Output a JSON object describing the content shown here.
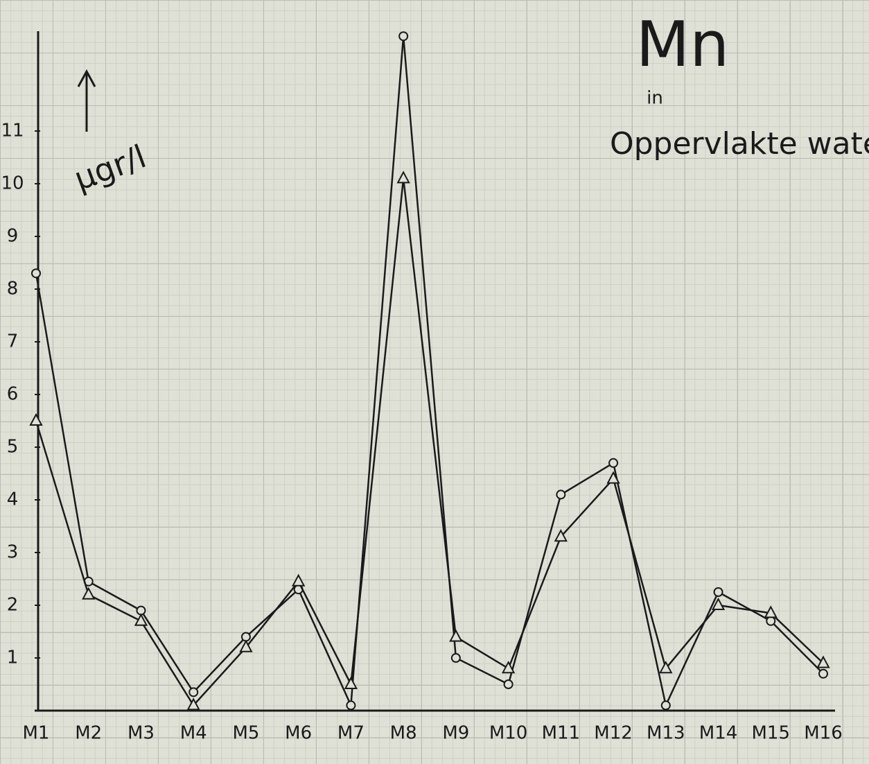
{
  "chart_data": {
    "type": "line",
    "title": "Mn",
    "annotations": [
      "in",
      "Oppervlakte water"
    ],
    "ylabel": "µgr/l",
    "categories": [
      "M1",
      "M2",
      "M3",
      "M4",
      "M5",
      "M6",
      "M7",
      "M8",
      "M9",
      "M10",
      "M11",
      "M12",
      "M13",
      "M14",
      "M15",
      "M16"
    ],
    "series": [
      {
        "color": "#1a1a1a",
        "marker": "circle",
        "values": [
          8.3,
          2.45,
          1.9,
          0.35,
          1.4,
          2.3,
          0.1,
          12.8,
          1.0,
          0.5,
          4.1,
          4.7,
          0.1,
          2.25,
          1.7,
          0.7
        ]
      },
      {
        "color": "#1a1a1a",
        "marker": "triangle",
        "values": [
          5.5,
          2.2,
          1.7,
          0.1,
          1.2,
          2.45,
          0.5,
          10.1,
          1.4,
          0.8,
          3.3,
          4.4,
          0.8,
          2.0,
          1.85,
          0.9
        ]
      }
    ],
    "ylim": [
      0,
      13.4
    ],
    "yticks": [
      1,
      2,
      3,
      4,
      5,
      6,
      7,
      8,
      9,
      10,
      11
    ]
  }
}
